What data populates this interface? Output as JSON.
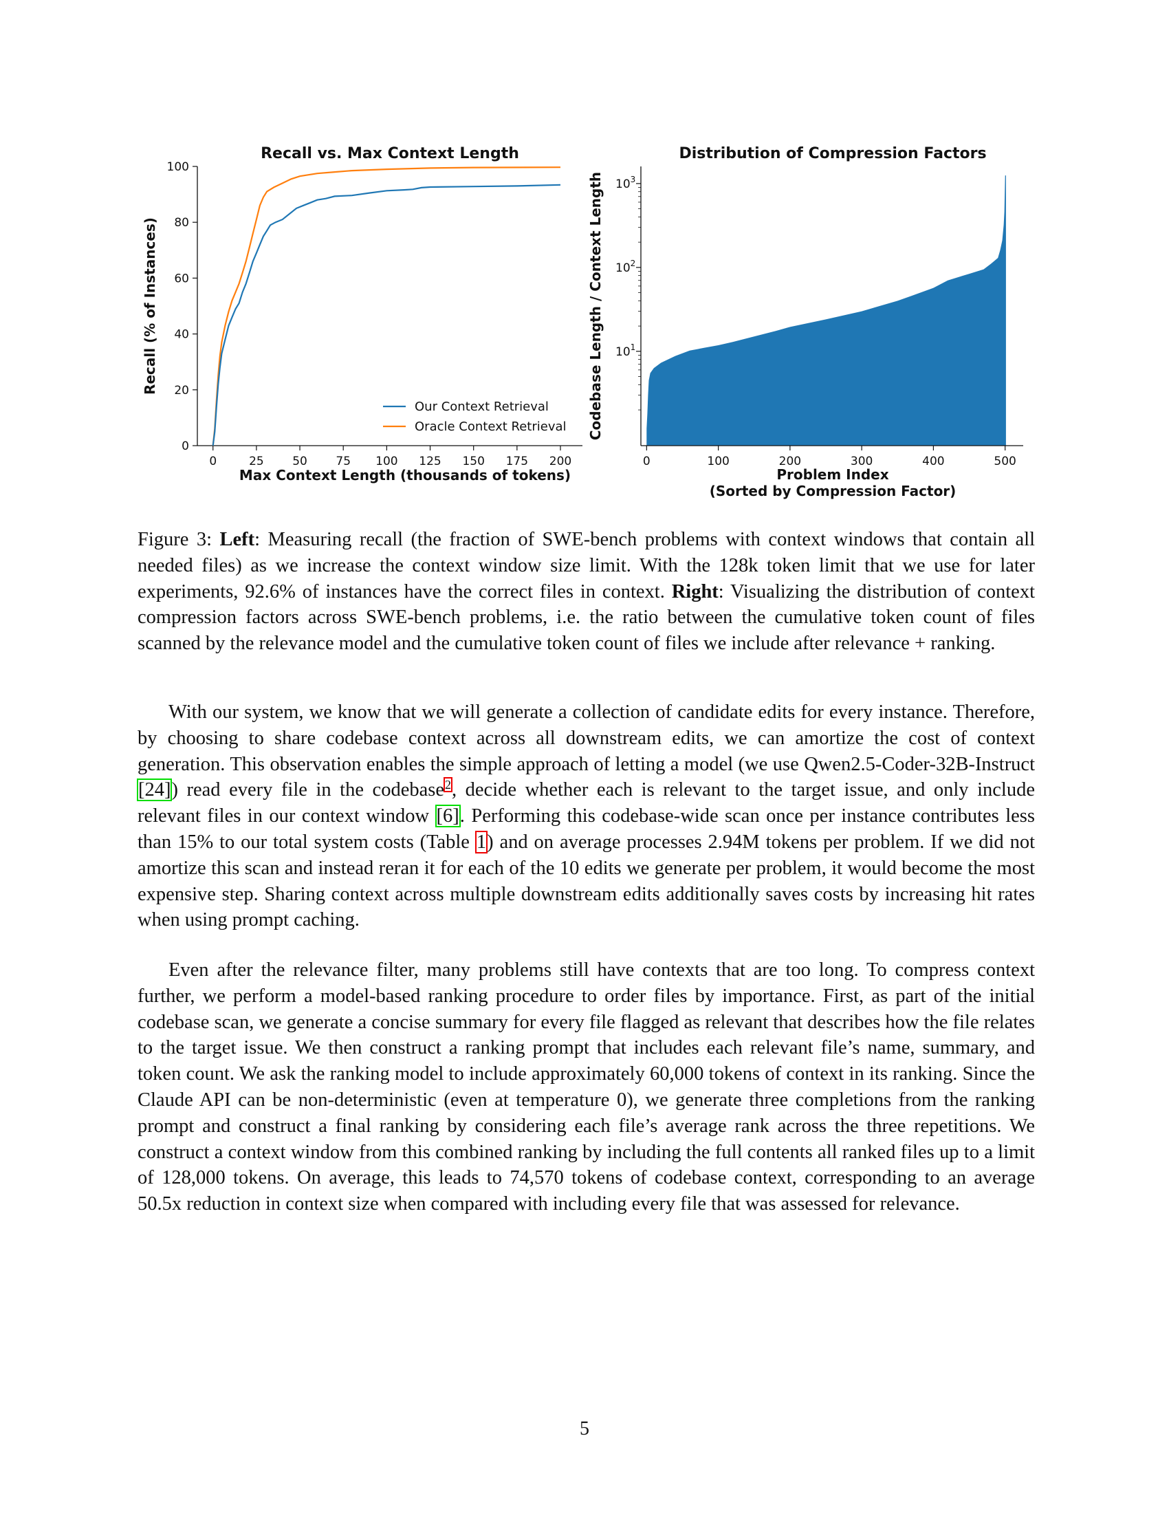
{
  "figure": {
    "left_chart": {
      "title": "Recall vs. Max Context Length",
      "xlabel": "Max Context Length (thousands of tokens)",
      "ylabel": "Recall (% of Instances)",
      "legend": [
        "Our Context Retrieval",
        "Oracle Context Retrieval"
      ]
    },
    "right_chart": {
      "title": "Distribution of Compression Factors",
      "xlabel_line1": "Problem Index",
      "xlabel_line2": "(Sorted by Compression Factor)",
      "ylabel": "Codebase Length / Context Length"
    }
  },
  "chart_data": [
    {
      "type": "line",
      "title": "Recall vs. Max Context Length",
      "xlabel": "Max Context Length (thousands of tokens)",
      "ylabel": "Recall (% of Instances)",
      "xlim": [
        -9,
        200
      ],
      "ylim": [
        0,
        100
      ],
      "xticks": [
        0,
        25,
        50,
        75,
        100,
        125,
        150,
        175,
        200
      ],
      "yticks": [
        0,
        20,
        40,
        60,
        80,
        100
      ],
      "legend_position": "lower-right",
      "grid": false,
      "series": [
        {
          "name": "Our Context Retrieval",
          "color": "#1f77b4",
          "points": [
            [
              0,
              0
            ],
            [
              1,
              5
            ],
            [
              2,
              14
            ],
            [
              3,
              22
            ],
            [
              4,
              28
            ],
            [
              5,
              33
            ],
            [
              7,
              38
            ],
            [
              9,
              43
            ],
            [
              11,
              46
            ],
            [
              13,
              49
            ],
            [
              15,
              51
            ],
            [
              17,
              55
            ],
            [
              19,
              58
            ],
            [
              21,
              62
            ],
            [
              23,
              66
            ],
            [
              25,
              69
            ],
            [
              27,
              72
            ],
            [
              29,
              75
            ],
            [
              31,
              77
            ],
            [
              33,
              79
            ],
            [
              36,
              80
            ],
            [
              40,
              81
            ],
            [
              44,
              83
            ],
            [
              48,
              85
            ],
            [
              52,
              86
            ],
            [
              56,
              87
            ],
            [
              60,
              88
            ],
            [
              65,
              88.5
            ],
            [
              70,
              89.3
            ],
            [
              80,
              89.6
            ],
            [
              90,
              90.5
            ],
            [
              100,
              91.3
            ],
            [
              110,
              91.6
            ],
            [
              115,
              91.8
            ],
            [
              120,
              92.4
            ],
            [
              125,
              92.6
            ],
            [
              150,
              92.8
            ],
            [
              175,
              93.0
            ],
            [
              200,
              93.4
            ]
          ]
        },
        {
          "name": "Oracle Context Retrieval",
          "color": "#ff7f0e",
          "points": [
            [
              0,
              0
            ],
            [
              1,
              6
            ],
            [
              2,
              16
            ],
            [
              3,
              25
            ],
            [
              4,
              32
            ],
            [
              5,
              37
            ],
            [
              7,
              43
            ],
            [
              9,
              48
            ],
            [
              11,
              52
            ],
            [
              13,
              55
            ],
            [
              15,
              58
            ],
            [
              17,
              62
            ],
            [
              19,
              66
            ],
            [
              21,
              71
            ],
            [
              23,
              76
            ],
            [
              25,
              81
            ],
            [
              27,
              86
            ],
            [
              29,
              89
            ],
            [
              31,
              91
            ],
            [
              35,
              92.5
            ],
            [
              40,
              94
            ],
            [
              45,
              95.5
            ],
            [
              50,
              96.5
            ],
            [
              55,
              97
            ],
            [
              60,
              97.5
            ],
            [
              70,
              98
            ],
            [
              80,
              98.5
            ],
            [
              100,
              99
            ],
            [
              125,
              99.4
            ],
            [
              150,
              99.6
            ],
            [
              200,
              99.7
            ]
          ]
        }
      ]
    },
    {
      "type": "bar",
      "title": "Distribution of Compression Factors",
      "xlabel": "Problem Index\n(Sorted by Compression Factor)",
      "ylabel": "Codebase Length / Context Length",
      "log_scale_y": true,
      "xlim": [
        -8,
        508
      ],
      "xticks": [
        0,
        100,
        200,
        300,
        400,
        500
      ],
      "yticks": [
        "10^1",
        "10^2",
        "10^3"
      ],
      "color": "#1f77b4",
      "sorted_values_by_index": [
        [
          0,
          1.2
        ],
        [
          1,
          1.8
        ],
        [
          2,
          3
        ],
        [
          3,
          4.5
        ],
        [
          5,
          5.5
        ],
        [
          10,
          6.3
        ],
        [
          20,
          7.3
        ],
        [
          40,
          8.8
        ],
        [
          60,
          10.2
        ],
        [
          80,
          11
        ],
        [
          100,
          11.8
        ],
        [
          120,
          12.9
        ],
        [
          150,
          15
        ],
        [
          180,
          17.5
        ],
        [
          200,
          19.5
        ],
        [
          250,
          24
        ],
        [
          300,
          30
        ],
        [
          350,
          40
        ],
        [
          370,
          46
        ],
        [
          400,
          57
        ],
        [
          420,
          70
        ],
        [
          450,
          84
        ],
        [
          470,
          95
        ],
        [
          480,
          110
        ],
        [
          490,
          130
        ],
        [
          493,
          160
        ],
        [
          496,
          210
        ],
        [
          498,
          320
        ],
        [
          499,
          460
        ],
        [
          500,
          1250
        ]
      ]
    }
  ],
  "caption": {
    "label": "Figure 3:",
    "left_label": "Left",
    "left_text": ": Measuring recall (the fraction of SWE-bench problems with context windows that contain all needed files) as we increase the context window size limit. With the 128k token limit that we use for later experiments, 92.6% of instances have the correct files in context.",
    "right_label": "Right",
    "right_text": ": Visualizing the distribution of context compression factors across SWE-bench problems, i.e. the ratio between the cumulative token count of files scanned by the relevance model and the cumulative token count of files we include after relevance + ranking."
  },
  "para1": {
    "t1": "With our system, we know that we will generate a collection of candidate edits for every instance. Therefore, by choosing to share codebase context across all downstream edits, we can amortize the cost of context generation. This observation enables the simple approach of letting a model (we use Qwen2.5-Coder-32B-Instruct ",
    "ref1": "[24]",
    "t2": ") read every file in the codebase",
    "fn": "2",
    "t3": ", decide whether each is relevant to the target issue, and only include relevant files in our context window ",
    "ref2": "[6]",
    "t4": ". Performing this codebase-wide scan once per instance contributes less than 15% to our total system costs (Table ",
    "ref3": "1",
    "t5": ") and on average processes 2.94M tokens per problem. If we did not amortize this scan and instead reran it for each of the 10 edits we generate per problem, it would become the most expensive step. Sharing context across multiple downstream edits additionally saves costs by increasing hit rates when using prompt caching."
  },
  "para2": "Even after the relevance filter, many problems still have contexts that are too long. To compress context further, we perform a model-based ranking procedure to order files by importance. First, as part of the initial codebase scan, we generate a concise summary for every file flagged as relevant that describes how the file relates to the target issue. We then construct a ranking prompt that includes each relevant file’s name, summary, and token count. We ask the ranking model to include approximately 60,000 tokens of context in its ranking. Since the Claude API can be non-deterministic (even at temperature 0), we generate three completions from the ranking prompt and construct a final ranking by considering each file’s average rank across the three repetitions. We construct a context window from this combined ranking by including the full contents all ranked files up to a limit of 128,000 tokens. On average, this leads to 74,570 tokens of codebase context, corresponding to an average 50.5x reduction in context size when compared with including every file that was assessed for relevance.",
  "page_number": "5"
}
